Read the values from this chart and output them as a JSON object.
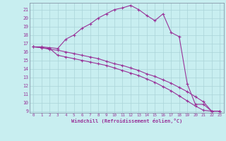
{
  "xlabel": "Windchill (Refroidissement éolien,°C)",
  "bg_color": "#c8eef0",
  "grid_color": "#aad4d8",
  "line_color": "#993399",
  "xlim": [
    -0.5,
    23.5
  ],
  "ylim": [
    8.8,
    21.8
  ],
  "yticks": [
    9,
    10,
    11,
    12,
    13,
    14,
    15,
    16,
    17,
    18,
    19,
    20,
    21
  ],
  "xticks": [
    0,
    1,
    2,
    3,
    4,
    5,
    6,
    7,
    8,
    9,
    10,
    11,
    12,
    13,
    14,
    15,
    16,
    17,
    18,
    19,
    20,
    21,
    22,
    23
  ],
  "line1_x": [
    0,
    1,
    2,
    3,
    4,
    5,
    6,
    7,
    8,
    9,
    10,
    11,
    12,
    13,
    14,
    15,
    16,
    17,
    18,
    19,
    20,
    21,
    22,
    23
  ],
  "line1_y": [
    16.6,
    16.6,
    16.5,
    16.4,
    17.5,
    18.0,
    18.8,
    19.3,
    20.0,
    20.5,
    21.0,
    21.2,
    21.5,
    21.0,
    20.3,
    19.7,
    20.5,
    18.3,
    17.8,
    12.2,
    9.8,
    9.8,
    9.0,
    9.0
  ],
  "line2_x": [
    0,
    1,
    2,
    3,
    4,
    5,
    6,
    7,
    8,
    9,
    10,
    11,
    12,
    13,
    14,
    15,
    16,
    17,
    18,
    19,
    20,
    21,
    22,
    23
  ],
  "line2_y": [
    16.6,
    16.5,
    16.3,
    16.2,
    16.0,
    15.8,
    15.6,
    15.4,
    15.2,
    14.9,
    14.6,
    14.4,
    14.1,
    13.8,
    13.4,
    13.1,
    12.7,
    12.3,
    11.8,
    11.3,
    10.7,
    10.1,
    9.0,
    9.0
  ],
  "line3_x": [
    0,
    1,
    2,
    3,
    4,
    5,
    6,
    7,
    8,
    9,
    10,
    11,
    12,
    13,
    14,
    15,
    16,
    17,
    18,
    19,
    20,
    21,
    22,
    23
  ],
  "line3_y": [
    16.6,
    16.5,
    16.4,
    15.6,
    15.4,
    15.2,
    15.0,
    14.8,
    14.6,
    14.4,
    14.1,
    13.8,
    13.5,
    13.2,
    12.8,
    12.4,
    11.9,
    11.4,
    10.8,
    10.2,
    9.6,
    9.1,
    9.0,
    9.0
  ]
}
